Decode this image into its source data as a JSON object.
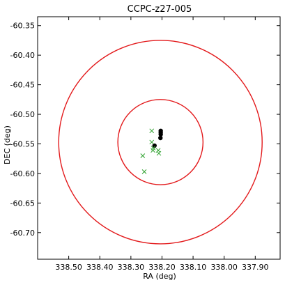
{
  "chart_data": {
    "type": "scatter",
    "title": "CCPC-z27-005",
    "xlabel": "RA (deg)",
    "ylabel": "DEC (deg)",
    "xlim": [
      338.6,
      337.82
    ],
    "ylim": [
      -60.745,
      -60.335
    ],
    "x_ticks": [
      {
        "value": 338.5,
        "label": "338.50"
      },
      {
        "value": 338.4,
        "label": "338.40"
      },
      {
        "value": 338.3,
        "label": "338.30"
      },
      {
        "value": 338.2,
        "label": "338.20"
      },
      {
        "value": 338.1,
        "label": "338.10"
      },
      {
        "value": 338.0,
        "label": "338.00"
      },
      {
        "value": 337.9,
        "label": "337.90"
      }
    ],
    "y_ticks": [
      {
        "value": -60.35,
        "label": "-60.35"
      },
      {
        "value": -60.4,
        "label": "-60.40"
      },
      {
        "value": -60.45,
        "label": "-60.45"
      },
      {
        "value": -60.5,
        "label": "-60.50"
      },
      {
        "value": -60.55,
        "label": "-60.55"
      },
      {
        "value": -60.6,
        "label": "-60.60"
      },
      {
        "value": -60.65,
        "label": "-60.65"
      },
      {
        "value": -60.7,
        "label": "-60.70"
      }
    ],
    "grid": false,
    "circles": [
      {
        "center": [
          338.205,
          -60.547
        ],
        "radius_dec": 0.072,
        "color": "#e31a1c"
      },
      {
        "center": [
          338.205,
          -60.547
        ],
        "radius_dec": 0.172,
        "color": "#e31a1c"
      }
    ],
    "series": [
      {
        "marker": "dot",
        "color": "#000000",
        "points": [
          [
            338.204,
            -60.528
          ],
          [
            338.204,
            -60.531
          ],
          [
            338.204,
            -60.534
          ],
          [
            338.205,
            -60.54
          ],
          [
            338.224,
            -60.553
          ]
        ]
      },
      {
        "marker": "x",
        "color": "#2ca02c",
        "points": [
          [
            338.233,
            -60.528
          ],
          [
            338.233,
            -60.547
          ],
          [
            338.228,
            -60.557
          ],
          [
            338.229,
            -60.561
          ],
          [
            338.212,
            -60.561
          ],
          [
            338.21,
            -60.566
          ],
          [
            338.262,
            -60.57
          ],
          [
            338.257,
            -60.597
          ]
        ]
      }
    ]
  }
}
